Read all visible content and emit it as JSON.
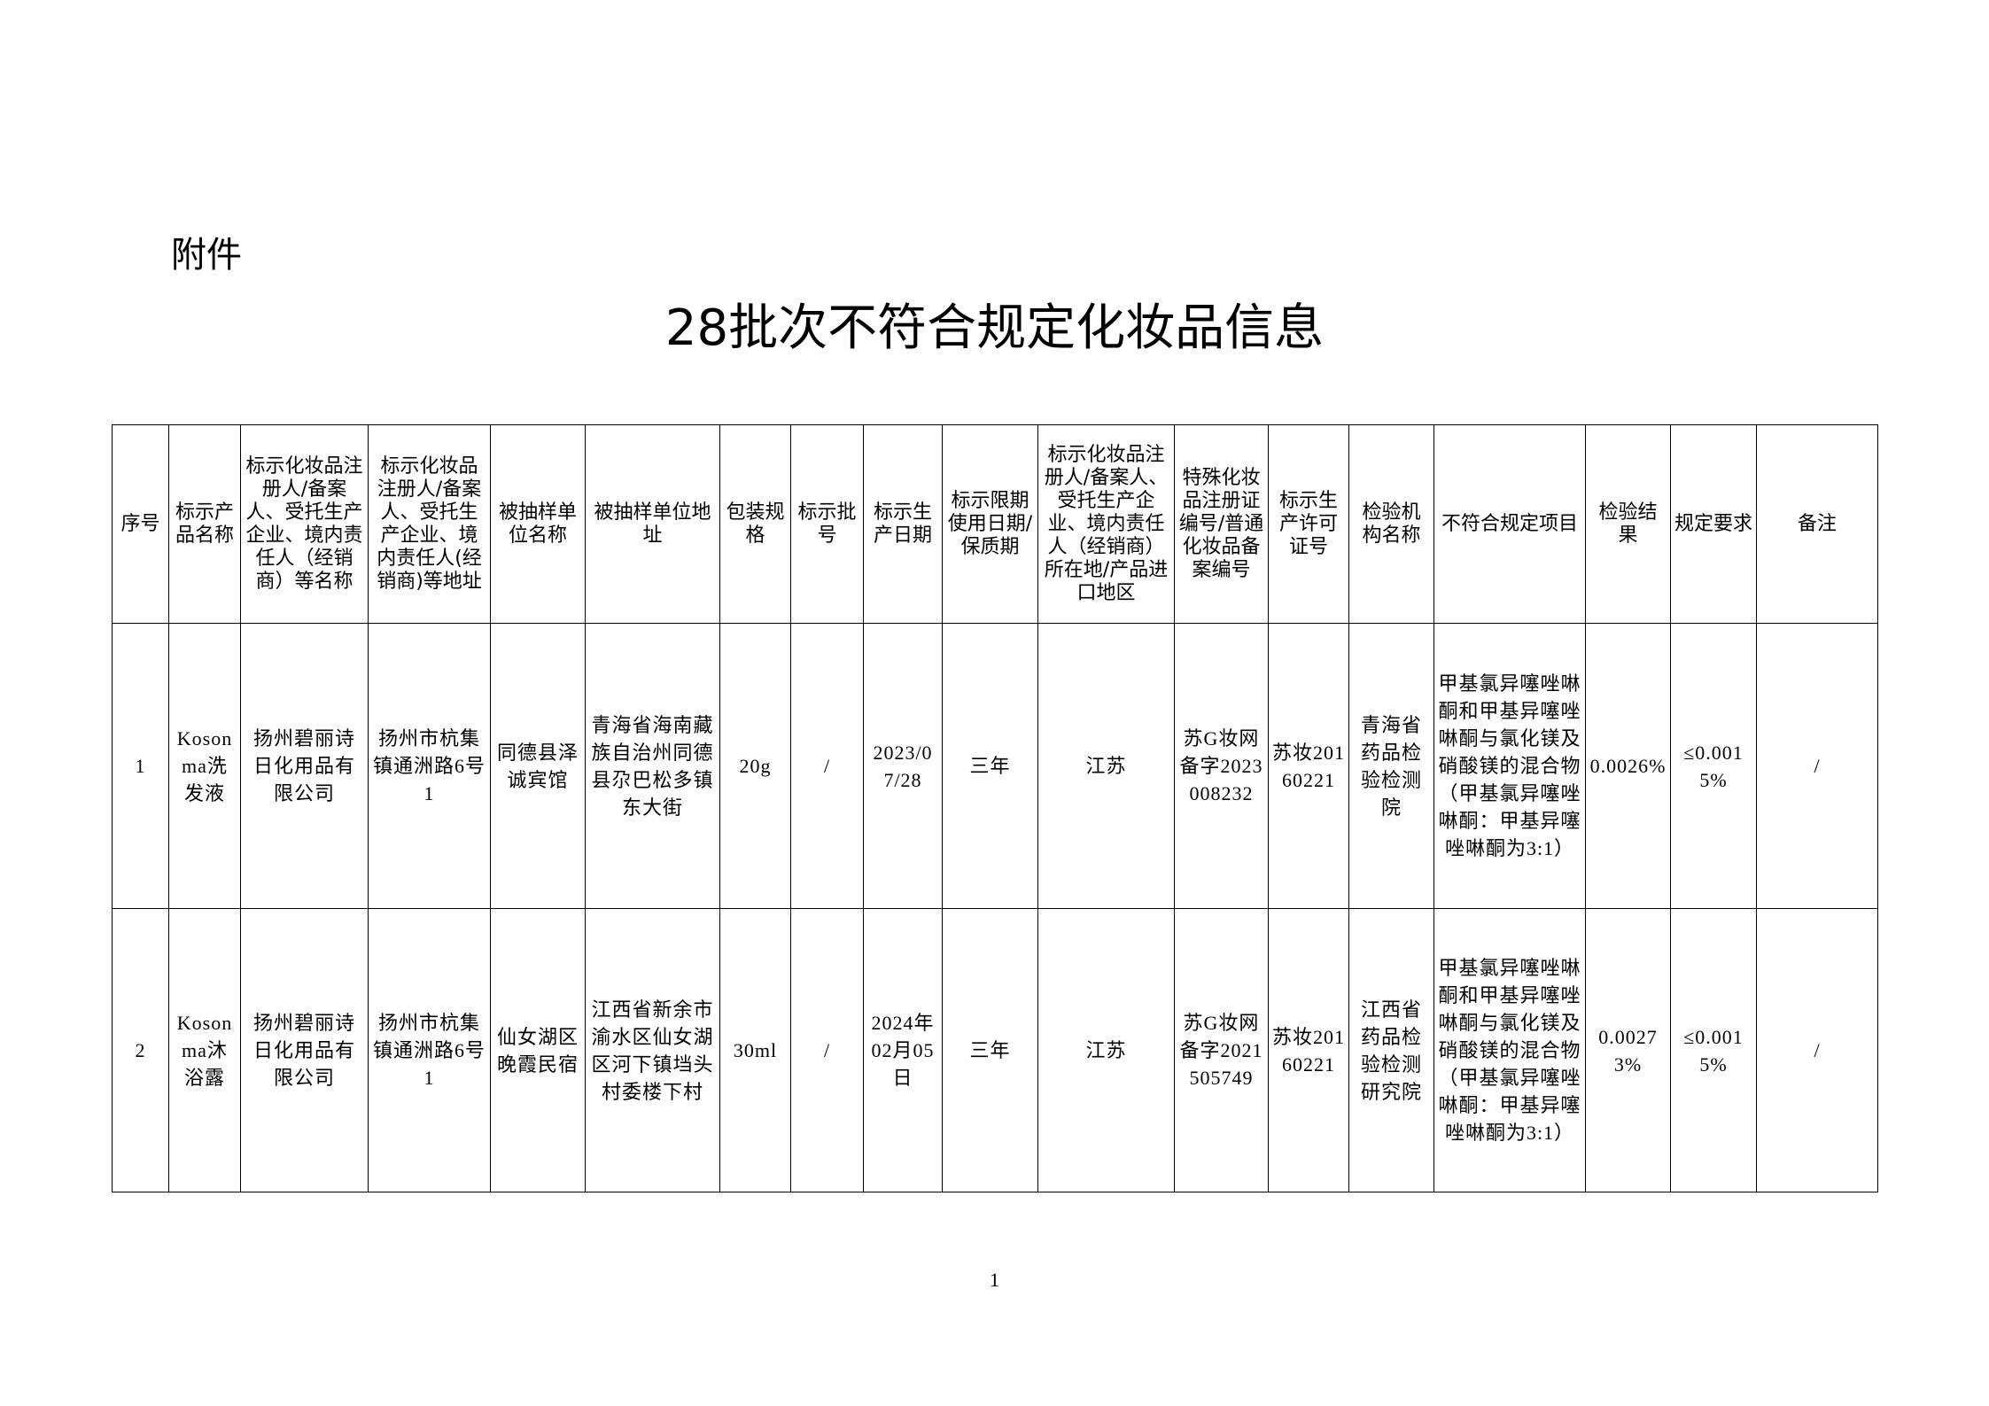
{
  "attachment_label": "附件",
  "title": "28批次不符合规定化妆品信息",
  "table": {
    "headers": [
      "序号",
      "标示产品名称",
      "标示化妆品注册人/备案人、受托生产企业、境内责任人（经销商）等名称",
      "标示化妆品注册人/备案人、受托生产企业、境内责任人(经销商)等地址",
      "被抽样单位名称",
      "被抽样单位地址",
      "包装规格",
      "标示批号",
      "标示生产日期",
      "标示限期使用日期/保质期",
      "标示化妆品注册人/备案人、受托生产企业、境内责任人（经销商）所在地/产品进口地区",
      "特殊化妆品注册证编号/普通化妆品备案编号",
      "标示生产许可证号",
      "检验机构名称",
      "不符合规定项目",
      "检验结果",
      "规定要求",
      "备注"
    ],
    "rows": [
      [
        "1",
        "Kosonma洗发液",
        "扬州碧丽诗日化用品有限公司",
        "扬州市杭集镇通洲路6号1",
        "同德县泽诚宾馆",
        "青海省海南藏族自治州同德县尕巴松多镇东大街",
        "20g",
        "/",
        "2023/07/28",
        "三年",
        "江苏",
        "苏G妆网备字2023008232",
        "苏妆20160221",
        "青海省药品检验检测院",
        "甲基氯异噻唑啉酮和甲基异噻唑啉酮与氯化镁及硝酸镁的混合物（甲基氯异噻唑啉酮：甲基异噻唑啉酮为3:1）",
        "0.0026%",
        "≤0.0015%",
        "/"
      ],
      [
        "2",
        "Kosonma沐浴露",
        "扬州碧丽诗日化用品有限公司",
        "扬州市杭集镇通洲路6号1",
        "仙女湖区晚霞民宿",
        "江西省新余市渝水区仙女湖区河下镇垱头村委楼下村",
        "30ml",
        "/",
        "2024年02月05日",
        "三年",
        "江苏",
        "苏G妆网备字2021505749",
        "苏妆20160221",
        "江西省药品检验检测研究院",
        "甲基氯异噻唑啉酮和甲基异噻唑啉酮与氯化镁及硝酸镁的混合物（甲基氯异噻唑啉酮：甲基异噻唑啉酮为3:1）",
        "0.00273%",
        "≤0.0015%",
        "/"
      ]
    ]
  },
  "page_number": "1"
}
